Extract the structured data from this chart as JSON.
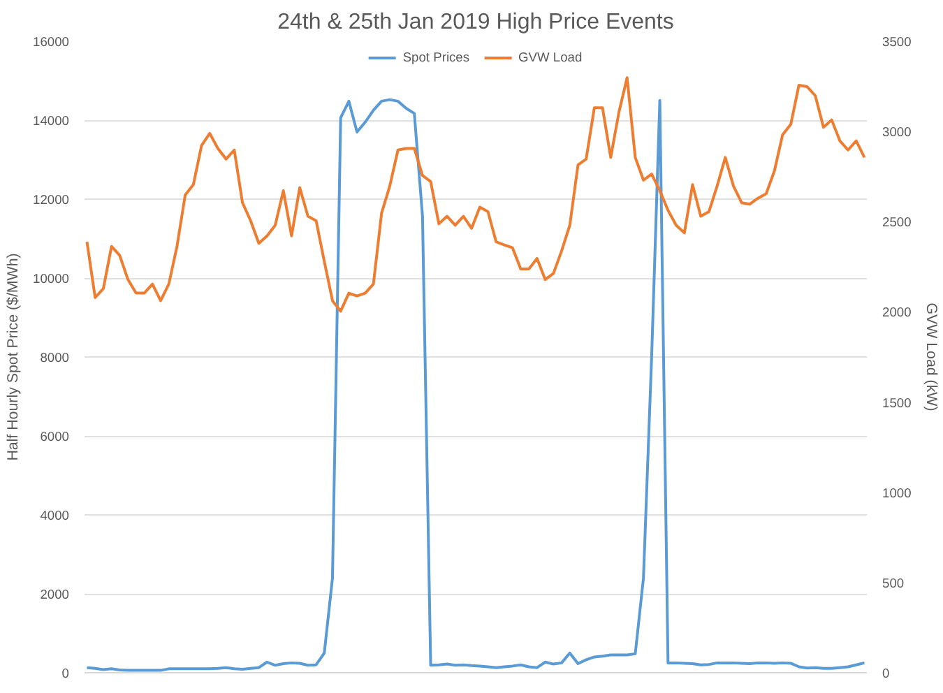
{
  "chart_data": {
    "type": "line",
    "title": "24th & 25th Jan 2019 High Price Events",
    "ylabel": "Half Hourly Spot Price ($/MWh)",
    "y2label": "GVW Load (kW)",
    "categories": [
      null,
      null,
      null,
      null,
      null,
      null,
      null,
      null,
      null,
      null,
      null,
      null,
      null,
      null,
      null,
      null,
      null,
      null,
      null,
      null,
      null,
      null,
      null,
      null,
      null,
      null,
      null,
      null,
      null,
      null,
      null,
      null,
      null,
      null,
      null,
      null,
      null,
      null,
      null,
      null,
      null,
      null,
      null,
      null,
      null,
      null,
      null,
      null,
      null,
      null,
      null,
      null,
      null,
      null,
      null,
      null,
      null,
      null,
      null,
      null,
      null,
      null,
      null,
      null,
      null,
      null,
      null,
      null,
      null,
      null,
      null,
      null,
      null,
      null,
      null,
      null,
      null,
      null,
      null,
      null,
      null,
      null,
      null,
      null,
      null,
      null,
      null,
      null,
      null,
      null,
      null,
      null,
      null,
      null,
      null,
      null
    ],
    "series": [
      {
        "name": "Spot Prices",
        "color": "#5b9bd5",
        "values": [
          130,
          110,
          80,
          100,
          70,
          60,
          60,
          60,
          60,
          60,
          100,
          100,
          100,
          100,
          100,
          100,
          110,
          130,
          100,
          90,
          110,
          130,
          270,
          190,
          230,
          250,
          240,
          190,
          200,
          500,
          2400,
          14060,
          14480,
          13700,
          13950,
          14250,
          14480,
          14520,
          14480,
          14300,
          14170,
          11570,
          190,
          200,
          220,
          190,
          200,
          180,
          170,
          150,
          130,
          150,
          170,
          200,
          150,
          130,
          270,
          220,
          250,
          500,
          230,
          330,
          400,
          420,
          450,
          450,
          450,
          480,
          2400,
          8000,
          14500,
          250,
          250,
          240,
          230,
          200,
          210,
          250,
          250,
          250,
          240,
          230,
          250,
          250,
          240,
          250,
          240,
          150,
          120,
          130,
          110,
          110,
          130,
          150,
          200,
          250
        ]
      },
      {
        "name": "GVW Load",
        "color": "#ed7d31",
        "axis": "y2",
        "values": [
          2388,
          2079,
          2129,
          2363,
          2313,
          2180,
          2104,
          2104,
          2154,
          2062,
          2154,
          2363,
          2647,
          2705,
          2922,
          2989,
          2906,
          2847,
          2897,
          2605,
          2505,
          2380,
          2421,
          2480,
          2672,
          2421,
          2689,
          2530,
          2505,
          2280,
          2062,
          2004,
          2104,
          2088,
          2104,
          2154,
          2547,
          2697,
          2897,
          2906,
          2906,
          2756,
          2722,
          2488,
          2530,
          2480,
          2530,
          2463,
          2580,
          2555,
          2388,
          2371,
          2355,
          2238,
          2238,
          2296,
          2179,
          2213,
          2338,
          2480,
          2814,
          2847,
          3131,
          3131,
          2856,
          3106,
          3298,
          2856,
          2730,
          2764,
          2672,
          2563,
          2480,
          2438,
          2705,
          2530,
          2555,
          2697,
          2856,
          2697,
          2605,
          2597,
          2630,
          2655,
          2781,
          2981,
          3039,
          3256,
          3248,
          3198,
          3023,
          3064,
          2948,
          2897,
          2948,
          2856
        ]
      }
    ],
    "ylim": [
      0,
      16000
    ],
    "yticks": [
      0,
      2000,
      4000,
      6000,
      8000,
      10000,
      12000,
      14000,
      16000
    ],
    "y2lim": [
      0,
      3500
    ],
    "y2ticks": [
      0,
      500,
      1000,
      1500,
      2000,
      2500,
      3000,
      3500
    ],
    "grid": "y",
    "legend": "top",
    "tick_labels": "y",
    "marker": "none",
    "line_style": "solid"
  }
}
